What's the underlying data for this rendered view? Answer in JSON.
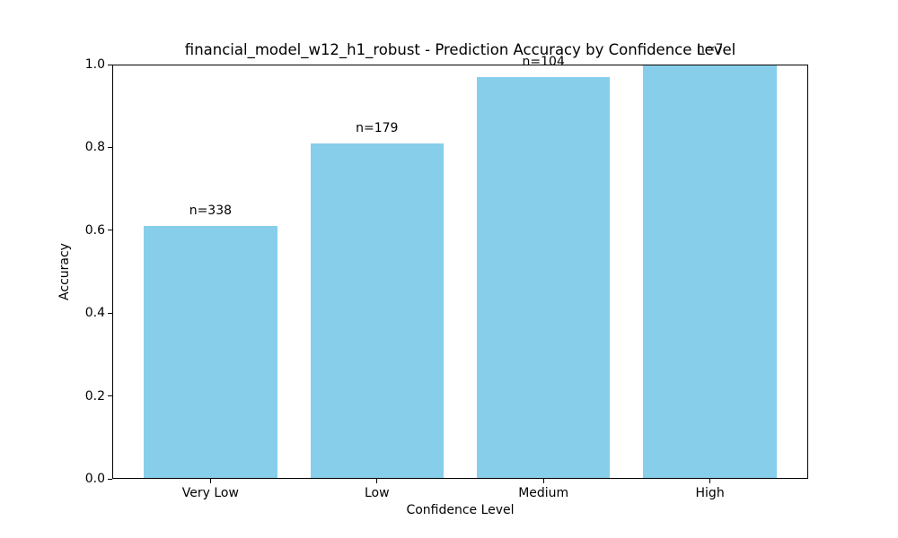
{
  "chart_data": {
    "type": "bar",
    "title": "financial_model_w12_h1_robust - Prediction Accuracy by Confidence Level",
    "xlabel": "Confidence Level",
    "ylabel": "Accuracy",
    "categories": [
      "Very Low",
      "Low",
      "Medium",
      "High"
    ],
    "values": [
      0.61,
      0.81,
      0.97,
      1.0
    ],
    "bar_labels": [
      "n=338",
      "n=179",
      "n=104",
      "n=7"
    ],
    "counts": [
      338,
      179,
      104,
      7
    ],
    "ylim": [
      0.0,
      1.0
    ],
    "yticks": [
      0.0,
      0.2,
      0.4,
      0.6,
      0.8,
      1.0
    ],
    "ytick_labels": [
      "0.0",
      "0.2",
      "0.4",
      "0.6",
      "0.8",
      "1.0"
    ],
    "bar_color": "#87CEEB",
    "axis_color": "#000000",
    "text_color": "#000000",
    "background_color": "#ffffff",
    "grid": false,
    "legend_position": "none"
  }
}
